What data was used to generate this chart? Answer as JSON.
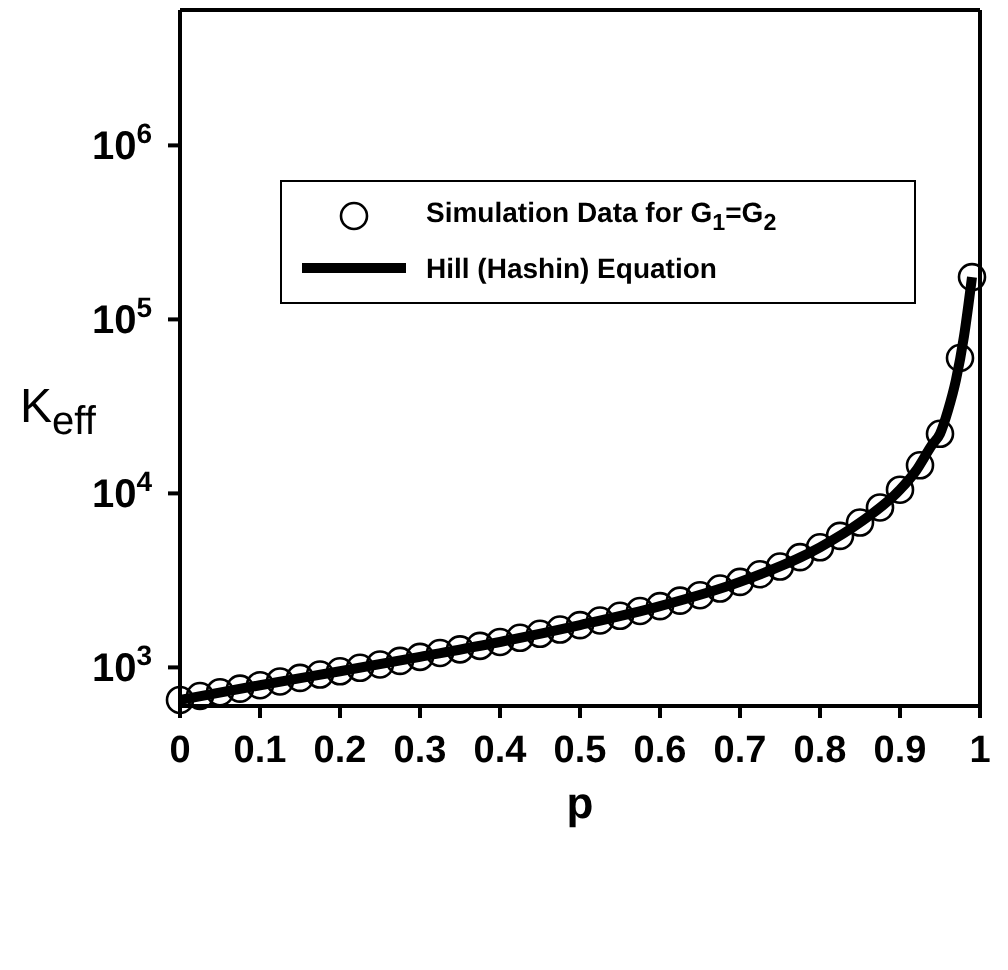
{
  "chart_data": {
    "type": "scatter",
    "xlabel": "p",
    "ylabel": "K$_{eff}$",
    "log": "y",
    "xlim": [
      0,
      1
    ],
    "xticks": [
      0,
      0.1,
      0.2,
      0.3,
      0.4,
      0.5,
      0.6,
      0.7,
      0.8,
      0.9,
      1
    ],
    "ylim": [
      600,
      6000000
    ],
    "yticks": [
      {
        "value": 1000,
        "label": "10$^{3}$"
      },
      {
        "value": 10000,
        "label": "10$^{4}$"
      },
      {
        "value": 100000,
        "label": "10$^{5}$"
      },
      {
        "value": 1000000,
        "label": "10$^{6}$"
      }
    ],
    "legend": "top",
    "series": [
      {
        "name": "Simulation Data for G$_{1}$=G$_{2}$",
        "marker": "circle",
        "color": "#000000",
        "x": [
          0,
          0.025,
          0.05,
          0.075,
          0.1,
          0.125,
          0.15,
          0.175,
          0.2,
          0.225,
          0.25,
          0.275,
          0.3,
          0.325,
          0.35,
          0.375,
          0.4,
          0.425,
          0.45,
          0.475,
          0.5,
          0.525,
          0.55,
          0.575,
          0.6,
          0.625,
          0.65,
          0.675,
          0.7,
          0.725,
          0.75,
          0.775,
          0.8,
          0.825,
          0.85,
          0.875,
          0.9,
          0.925,
          0.95,
          0.975,
          0.99
        ],
        "values": [
          650,
          685,
          720,
          755,
          790,
          830,
          870,
          910,
          950,
          995,
          1040,
          1090,
          1150,
          1210,
          1270,
          1330,
          1400,
          1480,
          1560,
          1650,
          1750,
          1860,
          1980,
          2110,
          2250,
          2420,
          2600,
          2840,
          3100,
          3430,
          3800,
          4300,
          4900,
          5700,
          6800,
          8300,
          10500,
          14500,
          22000,
          60000,
          175000
        ]
      },
      {
        "name": "Hill (Hashin) Equation",
        "type": "line",
        "marker": "none",
        "line_style": "solid",
        "color": "#000000",
        "x": [
          0,
          0.1,
          0.2,
          0.3,
          0.4,
          0.5,
          0.6,
          0.7,
          0.8,
          0.85,
          0.9,
          0.92,
          0.94,
          0.95,
          0.96,
          0.97,
          0.98,
          0.99
        ],
        "values": [
          650,
          790,
          950,
          1150,
          1400,
          1750,
          2250,
          3100,
          4900,
          6800,
          10500,
          13500,
          19000,
          22000,
          30000,
          45000,
          80000,
          175000
        ]
      }
    ]
  }
}
